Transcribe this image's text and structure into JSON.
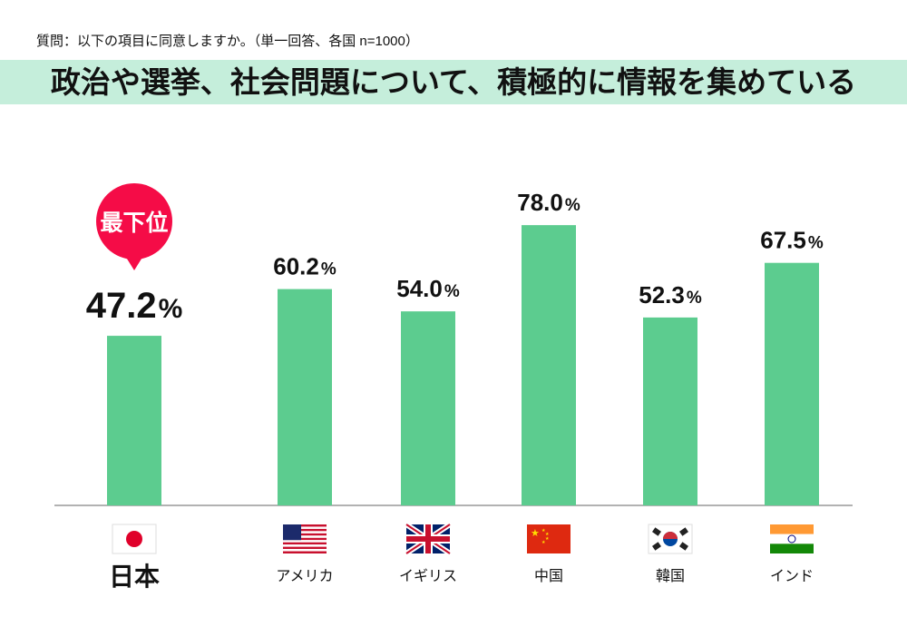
{
  "question": "質問：以下の項目に同意しますか。（単一回答、各国 n=1000）",
  "chart_data": {
    "type": "bar",
    "title": "政治や選挙、社会問題について、積極的に情報を集めている",
    "categories": [
      "日本",
      "アメリカ",
      "イギリス",
      "中国",
      "韓国",
      "インド"
    ],
    "flags": [
      "japan",
      "usa",
      "uk",
      "china",
      "korea",
      "india"
    ],
    "values": [
      47.2,
      60.2,
      54.0,
      78.0,
      52.3,
      67.5
    ],
    "unit": "%",
    "ylim": [
      0,
      100
    ],
    "grid": false,
    "annotation": {
      "category": "日本",
      "text": "最下位"
    },
    "colors": {
      "bar": "#5ccc8f",
      "badge": "#f50c47"
    }
  }
}
